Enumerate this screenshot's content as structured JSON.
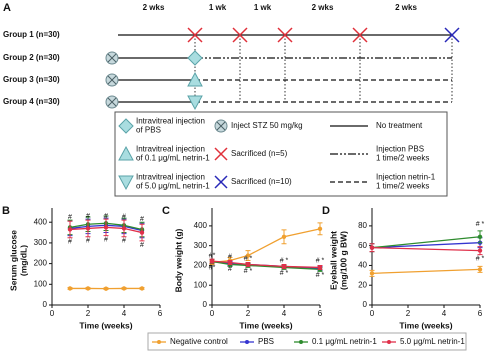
{
  "diagram": {
    "label": "A",
    "periods": [
      "2 wks",
      "1 wk",
      "1 wk",
      "2 wks",
      "2 wks"
    ],
    "groups": [
      "Group 1 (n=30)",
      "Group 2 (n=30)",
      "Group 3 (n=30)",
      "Group 4 (n=30)"
    ],
    "legend": [
      {
        "lines": [
          "Intravitreal injection",
          "of PBS"
        ]
      },
      {
        "lines": [
          "Intravitreal injection",
          "of 0.1 μg/mL netrin-1"
        ]
      },
      {
        "lines": [
          "Intravitreal injection",
          "of 5.0 μg/mL netrin-1"
        ]
      },
      {
        "lines": [
          "Inject STZ 50 mg/kg"
        ]
      },
      {
        "lines": [
          "Sacrificed (n=5)"
        ]
      },
      {
        "lines": [
          "Sacrificed (n=10)"
        ]
      },
      {
        "lines": [
          "No treatment"
        ]
      },
      {
        "lines": [
          "Injection PBS",
          "1 time/2 weeks"
        ]
      },
      {
        "lines": [
          "Injection netrin-1",
          "1 time/2 weeks"
        ]
      }
    ]
  },
  "chart_data": [
    {
      "type": "line",
      "label": "B",
      "ylabel": [
        "Serum glucose",
        "(mg/dL)"
      ],
      "xlabel": "Time (weeks)",
      "x": [
        1,
        2,
        3,
        4,
        5
      ],
      "xlim": [
        0,
        6
      ],
      "xticks": [
        0,
        2,
        4,
        6
      ],
      "ylim": [
        0,
        430
      ],
      "yticks": [
        0,
        100,
        200,
        300,
        400
      ],
      "series": [
        {
          "name": "Negative control",
          "color": "#f0a030",
          "values": [
            80,
            80,
            79,
            80,
            80
          ],
          "errors": [
            4,
            4,
            4,
            4,
            4
          ]
        },
        {
          "name": "PBS",
          "color": "#3535d0",
          "values": [
            370,
            380,
            385,
            380,
            360
          ],
          "errors": [
            35,
            35,
            35,
            35,
            35
          ]
        },
        {
          "name": "0.1 μg/mL netrin-1",
          "color": "#2e8b2e",
          "values": [
            375,
            390,
            395,
            385,
            365
          ],
          "errors": [
            35,
            35,
            35,
            35,
            35
          ]
        },
        {
          "name": "5.0 μg/mL netrin-1",
          "color": "#e0304a",
          "values": [
            365,
            370,
            375,
            370,
            350
          ],
          "errors": [
            40,
            40,
            40,
            40,
            40
          ]
        }
      ],
      "annotations": [
        {
          "text": "#",
          "x": 1,
          "y": 425,
          "color": "#2e8b2e"
        },
        {
          "text": "#",
          "x": 2,
          "y": 430,
          "color": "#2e8b2e"
        },
        {
          "text": "#",
          "x": 3,
          "y": 430,
          "color": "#2e8b2e"
        },
        {
          "text": "#",
          "x": 4,
          "y": 428,
          "color": "#2e8b2e"
        },
        {
          "text": "#",
          "x": 5,
          "y": 415,
          "color": "#2e8b2e"
        },
        {
          "text": "#",
          "x": 1,
          "y": 305,
          "color": "#e0304a"
        },
        {
          "text": "#",
          "x": 2,
          "y": 310,
          "color": "#e0304a"
        },
        {
          "text": "#",
          "x": 3,
          "y": 315,
          "color": "#e0304a"
        },
        {
          "text": "#",
          "x": 4,
          "y": 310,
          "color": "#e0304a"
        },
        {
          "text": "#",
          "x": 5,
          "y": 290,
          "color": "#e0304a"
        }
      ]
    },
    {
      "type": "line",
      "label": "C",
      "ylabel": [
        "Body weight (g)"
      ],
      "xlabel": "Time (weeks)",
      "x": [
        0,
        1,
        2,
        4,
        6
      ],
      "xlim": [
        0,
        6
      ],
      "xticks": [
        0,
        2,
        4,
        6
      ],
      "ylim": [
        0,
        450
      ],
      "yticks": [
        0,
        100,
        200,
        300,
        400
      ],
      "series": [
        {
          "color": "#f0a030",
          "values": [
            215,
            225,
            250,
            345,
            385
          ],
          "errors": [
            10,
            15,
            25,
            35,
            30
          ]
        },
        {
          "color": "#3535d0",
          "values": [
            220,
            210,
            205,
            195,
            185
          ],
          "errors": [
            10,
            10,
            10,
            10,
            10
          ]
        },
        {
          "color": "#2e8b2e",
          "values": [
            220,
            205,
            200,
            190,
            180
          ],
          "errors": [
            10,
            10,
            10,
            10,
            10
          ]
        },
        {
          "color": "#e0304a",
          "values": [
            222,
            215,
            205,
            195,
            190
          ],
          "errors": [
            10,
            10,
            10,
            10,
            10
          ]
        }
      ],
      "annotations": [
        {
          "text": "#*",
          "x": 0,
          "y": 250,
          "color": "#e0304a"
        },
        {
          "text": "#*",
          "x": 0,
          "y": 190,
          "color": "#2e8b2e"
        },
        {
          "text": "#",
          "x": 1,
          "y": 245,
          "color": "#e0304a"
        },
        {
          "text": "#",
          "x": 1,
          "y": 180,
          "color": "#2e8b2e"
        },
        {
          "text": "# *",
          "x": 2,
          "y": 235,
          "color": "#e0304a"
        },
        {
          "text": "# *",
          "x": 2,
          "y": 170,
          "color": "#2e8b2e"
        },
        {
          "text": "# *",
          "x": 4,
          "y": 225,
          "color": "#e0304a"
        },
        {
          "text": "# *",
          "x": 4,
          "y": 160,
          "color": "#2e8b2e"
        },
        {
          "text": "# *",
          "x": 6,
          "y": 225,
          "color": "#e0304a"
        },
        {
          "text": "# *",
          "x": 6,
          "y": 150,
          "color": "#2e8b2e"
        }
      ]
    },
    {
      "type": "line",
      "label": "D",
      "ylabel": [
        "Eyeball weight",
        "(mg/100 g BW)"
      ],
      "xlabel": "Time (weeks)",
      "x": [
        0,
        6
      ],
      "xlim": [
        0,
        6
      ],
      "xticks": [
        0,
        2,
        4,
        6
      ],
      "ylim": [
        0,
        90
      ],
      "yticks": [
        0,
        20,
        40,
        60,
        80
      ],
      "series": [
        {
          "color": "#f0a030",
          "values": [
            32,
            36
          ],
          "errors": [
            3,
            3
          ]
        },
        {
          "color": "#3535d0",
          "values": [
            58,
            63
          ],
          "errors": [
            4,
            5
          ]
        },
        {
          "color": "#2e8b2e",
          "values": [
            58,
            69
          ],
          "errors": [
            4,
            6
          ]
        },
        {
          "color": "#e0304a",
          "values": [
            58,
            55
          ],
          "errors": [
            4,
            4
          ]
        }
      ],
      "annotations": [
        {
          "text": "# *",
          "x": 6,
          "y": 82,
          "color": "#2e8b2e"
        },
        {
          "text": "# *",
          "x": 6,
          "y": 47,
          "color": "#e0304a"
        }
      ]
    }
  ]
}
